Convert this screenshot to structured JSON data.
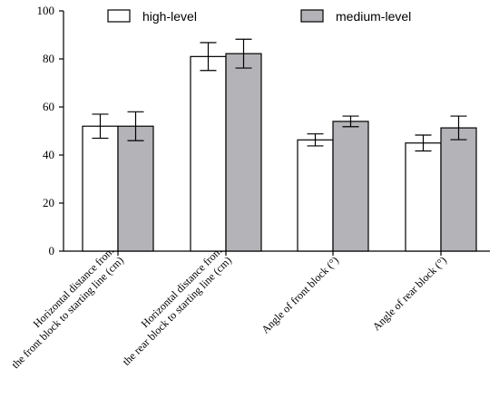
{
  "chart_data": {
    "type": "bar",
    "categories": [
      [
        "Horizontal distance from",
        "the front block to starting line (cm)"
      ],
      [
        "Horizontal distance from",
        "the rear block to starting line (cm)"
      ],
      [
        "Angle of front block (°)"
      ],
      [
        "Angle of rear block (°)"
      ]
    ],
    "series": [
      {
        "name": "high-level",
        "color": "#ffffff",
        "values": [
          52,
          81,
          46.3,
          45
        ],
        "error": [
          5,
          5.8,
          2.5,
          3.3
        ]
      },
      {
        "name": "medium-level",
        "color": "#b3b3b8",
        "values": [
          52,
          82.2,
          54,
          51.3
        ],
        "error": [
          6,
          6,
          2.2,
          4.9
        ]
      }
    ],
    "ylim": [
      0,
      100
    ],
    "yticks": [
      "0",
      "20",
      "40",
      "60",
      "80",
      "100"
    ],
    "grid": false,
    "legend_position": "top"
  }
}
